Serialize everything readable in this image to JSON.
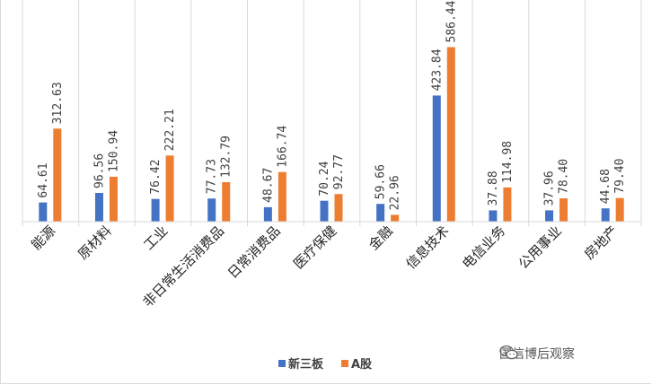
{
  "chart_data": {
    "type": "bar",
    "categories": [
      "能源",
      "原材料",
      "工业",
      "非日常生活消费品",
      "日常消费品",
      "医疗保健",
      "金融",
      "信息技术",
      "电信业务",
      "公用事业",
      "房地产"
    ],
    "series": [
      {
        "name": "新三板",
        "values": [
          64.61,
          96.56,
          76.42,
          77.73,
          48.67,
          70.24,
          59.66,
          423.84,
          37.88,
          37.96,
          44.68
        ],
        "labels": [
          "64.61",
          "96.56",
          "76.42",
          "77.73",
          "48.67",
          "70.24",
          "59.66",
          "423.84",
          "37.88",
          "37.96",
          "44.68"
        ],
        "color": "#4472c4"
      },
      {
        "name": "A股",
        "values": [
          312.63,
          150.94,
          222.21,
          132.79,
          166.74,
          92.77,
          22.96,
          586.44,
          114.98,
          78.4,
          79.4
        ],
        "labels": [
          "312.63",
          "150.94",
          "222.21",
          "132.79",
          "166.74",
          "92.77",
          "22.96",
          "586.44",
          "114.98",
          "78.40",
          "79.40"
        ],
        "color": "#ed7d31"
      }
    ],
    "ylim": [
      0,
      600
    ],
    "legend_position": "bottom",
    "grid": false
  },
  "watermark": {
    "text": "国信博后观察",
    "icon": "wechat-icon"
  }
}
